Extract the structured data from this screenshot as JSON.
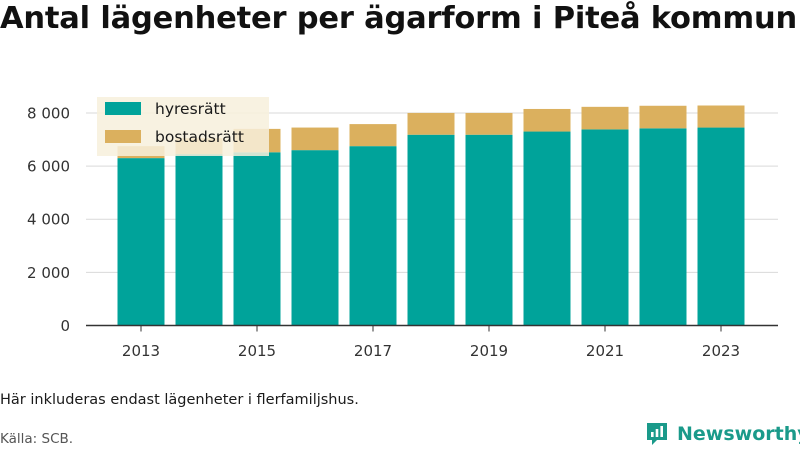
{
  "title": "Antal lägenheter per ägarform i Piteå kommun",
  "note": "Här inkluderas endast lägenheter i flerfamiljshus.",
  "source": "Källa: SCB.",
  "brand": {
    "name": "Newsworthy",
    "icon": "newsworthy-logo-icon"
  },
  "colors": {
    "hyresratt": "#00a39a",
    "bostadsratt": "#dbb05e",
    "legend_bg": "#f7f0dc",
    "grid": "#d9d9d9",
    "axis": "#333333"
  },
  "chart_data": {
    "type": "bar",
    "stacked": true,
    "years": [
      2013,
      2014,
      2015,
      2016,
      2017,
      2018,
      2019,
      2020,
      2021,
      2022,
      2023
    ],
    "x_tick_labels": [
      "2013",
      "2015",
      "2017",
      "2019",
      "2021",
      "2023"
    ],
    "series": [
      {
        "name": "hyresrätt",
        "values": [
          6300,
          6450,
          6520,
          6600,
          6750,
          7180,
          7180,
          7300,
          7380,
          7420,
          7450
        ]
      },
      {
        "name": "bostadsrätt",
        "values": [
          450,
          600,
          880,
          850,
          830,
          820,
          820,
          850,
          850,
          850,
          830
        ]
      }
    ],
    "y_ticks": [
      0,
      2000,
      4000,
      6000,
      8000
    ],
    "y_tick_labels": [
      "0",
      "2 000",
      "4 000",
      "6 000",
      "8 000"
    ],
    "ylim": [
      0,
      8600
    ],
    "grid": true,
    "legend_position": "top-left"
  }
}
